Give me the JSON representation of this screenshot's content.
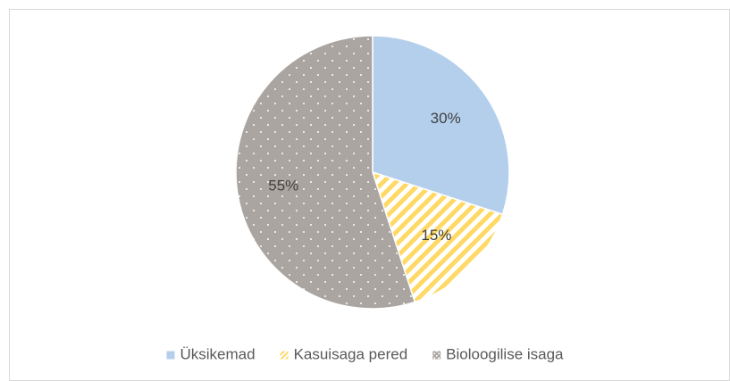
{
  "chart_data": {
    "type": "pie",
    "categories": [
      "Üksikemad",
      "Kasuisaga pered",
      "Bioloogilise isaga"
    ],
    "values": [
      30,
      15,
      55
    ],
    "value_labels": [
      "30%",
      "15%",
      "55%"
    ],
    "colors": [
      "#b4cfec",
      "#ffd966",
      "#aaa5a0"
    ],
    "patterns": [
      "solid",
      "diagonal",
      "dots"
    ],
    "legend": "bottom"
  }
}
